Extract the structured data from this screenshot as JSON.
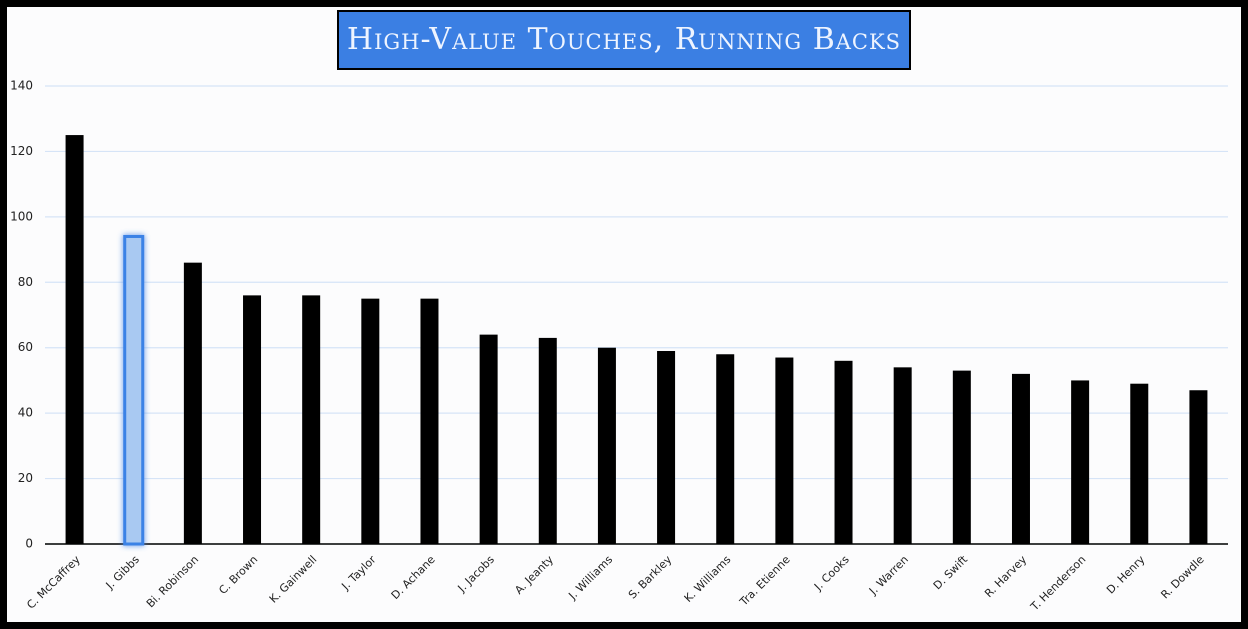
{
  "chart_data": {
    "type": "bar",
    "title": "High-Value Touches, Running Backs",
    "categories": [
      "C. McCaffrey",
      "J. Gibbs",
      "Bi. Robinson",
      "C. Brown",
      "K. Gainwell",
      "J. Taylor",
      "D. Achane",
      "J. Jacobs",
      "A. Jeanty",
      "J. Williams",
      "S. Barkley",
      "K. Williams",
      "Tra. Etienne",
      "J. Cooks",
      "J. Warren",
      "D. Swift",
      "R. Harvey",
      "T. Henderson",
      "D. Henry",
      "R. Dowdle"
    ],
    "values": [
      125,
      94,
      86,
      76,
      76,
      75,
      75,
      64,
      63,
      60,
      59,
      58,
      57,
      56,
      54,
      53,
      52,
      50,
      49,
      47
    ],
    "colors": [
      "#000000",
      "#a9c9f2",
      "#000000",
      "#000000",
      "#000000",
      "#000000",
      "#000000",
      "#000000",
      "#000000",
      "#000000",
      "#000000",
      "#000000",
      "#000000",
      "#000000",
      "#000000",
      "#000000",
      "#000000",
      "#000000",
      "#000000",
      "#000000"
    ],
    "ylim": [
      0,
      140
    ],
    "yticks": [
      0,
      20,
      40,
      60,
      80,
      100,
      120,
      140
    ],
    "grid": true
  }
}
